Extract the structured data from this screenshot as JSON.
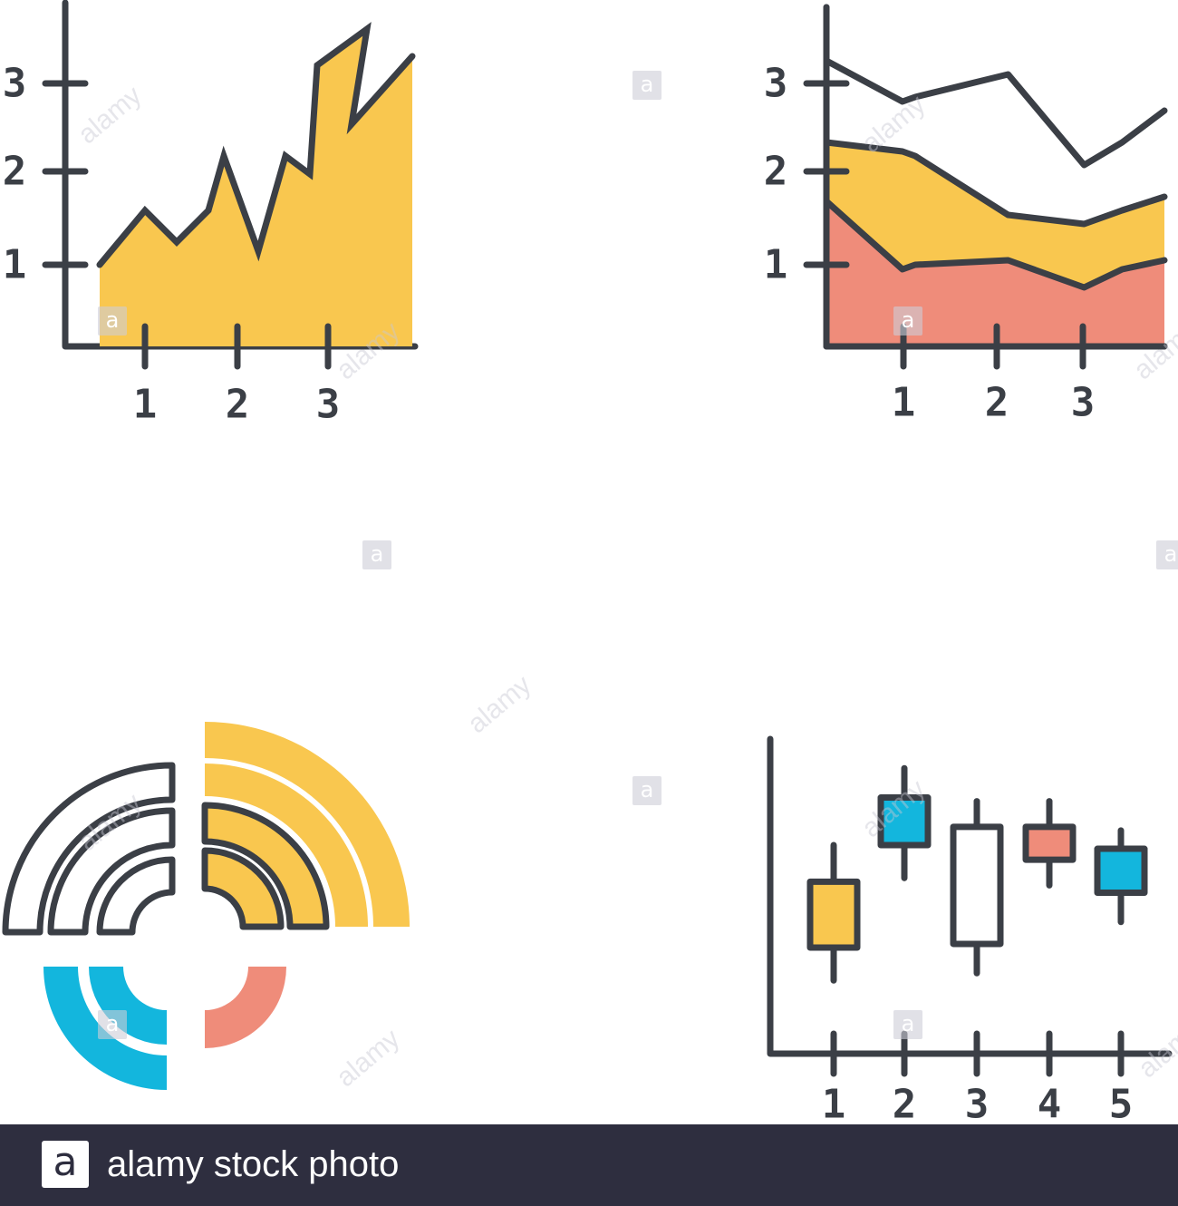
{
  "colors": {
    "stroke": "#3b3f46",
    "yellow": "#f9c74f",
    "salmon": "#ef8c7a",
    "blue": "#13b6dd",
    "white": "#ffffff"
  },
  "watermark": {
    "word": "alamy",
    "letter": "a"
  },
  "footer": {
    "logo_letter": "a",
    "text": "alamy stock photo"
  },
  "chart_data": [
    {
      "type": "area",
      "title": "",
      "x": [
        0.5,
        1,
        1.35,
        1.7,
        1.87,
        2.25,
        2.55,
        2.82,
        2.9,
        3.45,
        3.28,
        3.95
      ],
      "values": [
        1.0,
        1.6,
        1.25,
        1.6,
        2.2,
        1.15,
        2.2,
        2.0,
        3.2,
        3.6,
        2.55,
        3.3
      ],
      "xticks": [
        "1",
        "2",
        "3"
      ],
      "yticks": [
        "1",
        "2",
        "3"
      ],
      "xlim": [
        0,
        4.1
      ],
      "ylim": [
        0,
        3.9
      ],
      "grid": false,
      "fill": "yellow"
    },
    {
      "type": "area",
      "title": "",
      "x": [
        0,
        0.9,
        1.05,
        2.15,
        3.05,
        3.5,
        4
      ],
      "series": [
        {
          "name": "",
          "values": [
            1.7,
            0.95,
            1.0,
            1.05,
            0.75,
            0.95,
            1.05
          ],
          "fill": "salmon"
        },
        {
          "name": "",
          "values": [
            2.35,
            2.25,
            2.2,
            1.55,
            1.45,
            1.6,
            1.75
          ],
          "fill": "yellow"
        },
        {
          "name": "",
          "values": [
            3.25,
            2.8,
            2.85,
            3.1,
            2.1,
            2.35,
            2.7
          ],
          "fill": "none"
        }
      ],
      "xticks": [
        "1",
        "2",
        "3"
      ],
      "yticks": [
        "1",
        "2",
        "3"
      ],
      "xlim": [
        0,
        4
      ],
      "ylim": [
        0,
        3.9
      ],
      "grid": false
    },
    {
      "type": "pie",
      "title": "",
      "variant": "radial segments",
      "segments": [
        {
          "arcs": 3,
          "color": "white"
        },
        {
          "arcs": 3,
          "color": "yellow"
        },
        {
          "arcs": 2,
          "color": "blue"
        },
        {
          "arcs": 1,
          "color": "salmon"
        }
      ]
    },
    {
      "type": "candlestick",
      "title": "",
      "categories": [
        "1",
        "2",
        "3",
        "4",
        "5"
      ],
      "candles": [
        {
          "low": 1.0,
          "high": 2.85,
          "open": 1.45,
          "close": 2.35,
          "color": "yellow"
        },
        {
          "low": 2.4,
          "high": 3.9,
          "open": 2.85,
          "close": 3.5,
          "color": "blue"
        },
        {
          "low": 1.1,
          "high": 3.45,
          "open": 1.5,
          "close": 3.1,
          "color": "white"
        },
        {
          "low": 2.3,
          "high": 3.45,
          "open": 2.65,
          "close": 3.1,
          "color": "salmon"
        },
        {
          "low": 1.8,
          "high": 3.05,
          "open": 2.2,
          "close": 2.8,
          "color": "blue"
        }
      ],
      "xlim": [
        0,
        5.5
      ],
      "ylim": [
        0,
        4.3
      ],
      "grid": false
    }
  ]
}
